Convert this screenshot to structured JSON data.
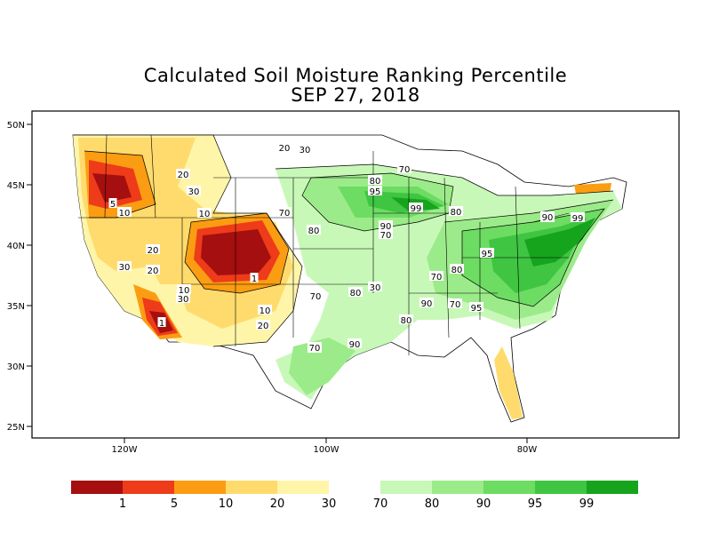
{
  "title": "Calculated Soil Moisture Ranking Percentile",
  "subtitle": "SEP 27, 2018",
  "axes": {
    "lat_ticks": [
      "50N",
      "45N",
      "40N",
      "35N",
      "30N",
      "25N"
    ],
    "lon_ticks": [
      "120W",
      "100W",
      "80W"
    ]
  },
  "legend": {
    "colors": [
      "#a50f0f",
      "#ee3b1a",
      "#fb9d12",
      "#fedb6c",
      "#fff5a8",
      "#c8f8b8",
      "#9ceb8a",
      "#6ddc63",
      "#3fc542",
      "#17a41d"
    ],
    "labels": [
      "1",
      "5",
      "10",
      "20",
      "30",
      "70",
      "80",
      "90",
      "95",
      "99"
    ]
  },
  "contour_labels": [
    "20",
    "30",
    "20",
    "30",
    "70",
    "80",
    "95",
    "99",
    "70",
    "80",
    "10",
    "70",
    "5",
    "10",
    "20",
    "90",
    "70",
    "30",
    "20",
    "10",
    "1",
    "80",
    "30",
    "80",
    "70",
    "95",
    "90",
    "99",
    "30",
    "10",
    "20",
    "80",
    "90",
    "80",
    "1",
    "80",
    "90",
    "70",
    "95",
    "70",
    "90"
  ],
  "colors": {
    "dry_severe": "#a50f0f",
    "dry": "#fb9d12",
    "wet": "#3fc542",
    "wet_severe": "#17a41d"
  }
}
